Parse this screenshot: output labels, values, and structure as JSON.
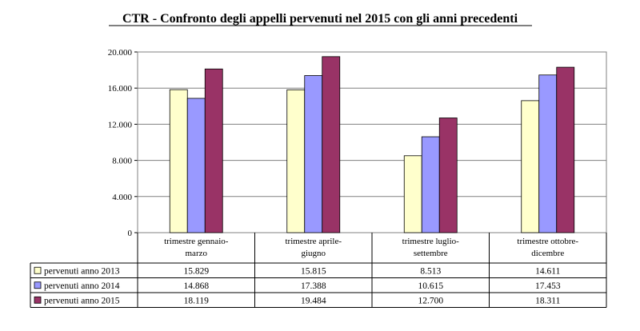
{
  "chart_data": {
    "type": "bar",
    "title": "CTR - Confronto degli appelli pervenuti nel 2015 con gli anni precedenti",
    "categories": [
      [
        "trimestre gennaio-",
        "marzo"
      ],
      [
        "trimestre aprile-",
        "giugno"
      ],
      [
        "trimestre luglio-",
        "settembre"
      ],
      [
        "trimestre ottobre-",
        "dicembre"
      ]
    ],
    "series": [
      {
        "name": "pervenuti anno 2013",
        "color": "#FFFFCC",
        "values": [
          15829,
          15815,
          8513,
          14611
        ],
        "labels": [
          "15.829",
          "15.815",
          "8.513",
          "14.611"
        ]
      },
      {
        "name": "pervenuti anno 2014",
        "color": "#9999FF",
        "values": [
          14868,
          17388,
          10615,
          17453
        ],
        "labels": [
          "14.868",
          "17.388",
          "10.615",
          "17.453"
        ]
      },
      {
        "name": "pervenuti anno 2015",
        "color": "#993366",
        "values": [
          18119,
          19484,
          12700,
          18311
        ],
        "labels": [
          "18.119",
          "19.484",
          "12.700",
          "18.311"
        ]
      }
    ],
    "ylim": [
      0,
      20000
    ],
    "yticks": [
      0,
      4000,
      8000,
      12000,
      16000,
      20000
    ],
    "ytick_labels": [
      "0",
      "4.000",
      "8.000",
      "12.000",
      "16.000",
      "20.000"
    ],
    "grid": true,
    "legend": "data-table"
  }
}
